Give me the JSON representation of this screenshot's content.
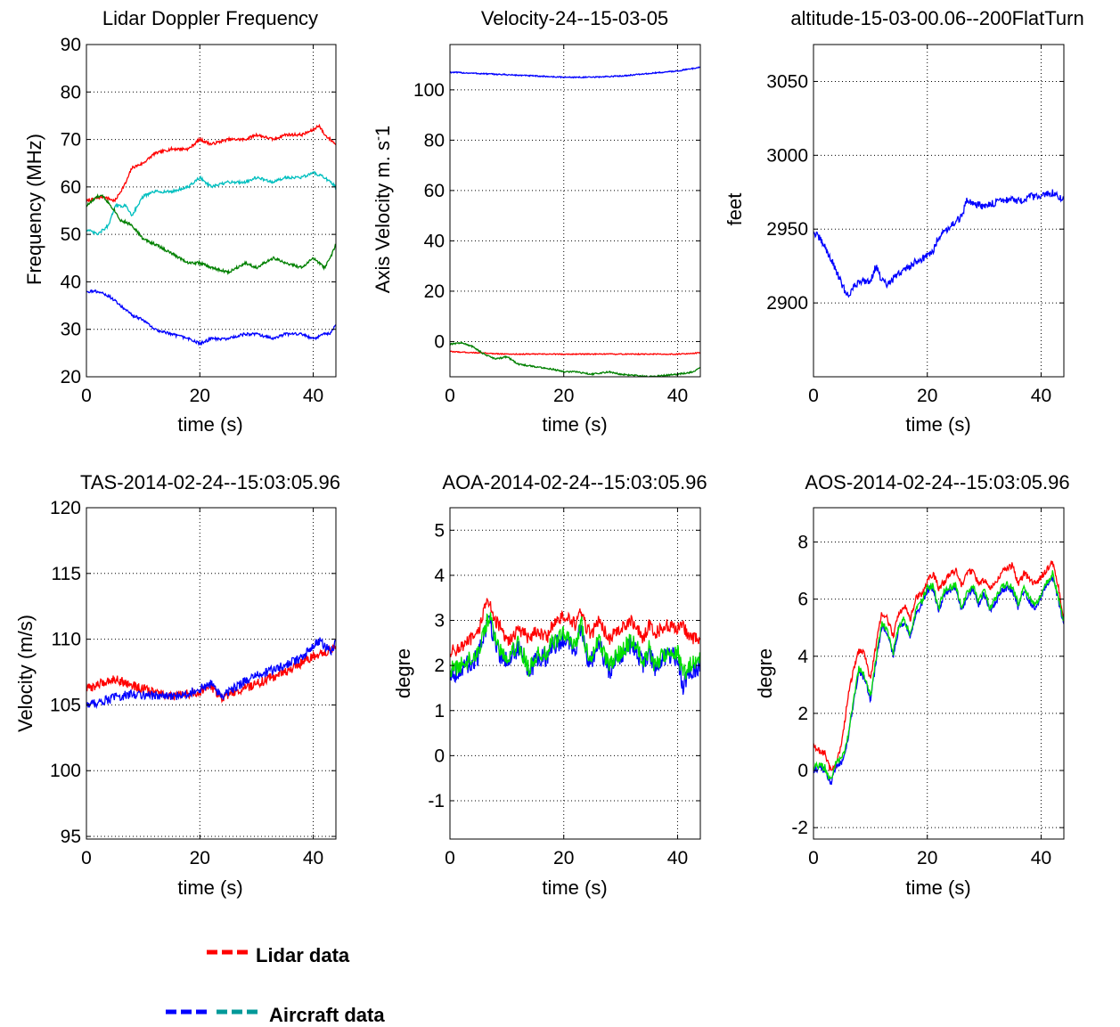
{
  "chart_data": [
    {
      "type": "line",
      "title": "Lidar Doppler Frequency",
      "xlabel": "time (s)",
      "ylabel": "Frequency (MHz)",
      "xlim": [
        0,
        44
      ],
      "ylim": [
        20,
        90
      ],
      "xticks": [
        0,
        20,
        40
      ],
      "yticks": [
        20,
        30,
        40,
        50,
        60,
        70,
        80,
        90
      ],
      "grid": true,
      "series": [
        {
          "color": "#ff0000",
          "noise": 0.3,
          "x": [
            0,
            3,
            5,
            7,
            8,
            10,
            12,
            15,
            18,
            20,
            22,
            25,
            28,
            30,
            33,
            35,
            38,
            40,
            41,
            42,
            43,
            44
          ],
          "values": [
            57,
            58,
            57,
            61,
            64,
            65,
            67,
            68,
            68,
            70,
            69,
            70,
            70,
            71,
            70,
            71,
            71,
            72,
            73,
            71,
            70,
            69
          ]
        },
        {
          "color": "#00bfbf",
          "noise": 0.3,
          "x": [
            0,
            2,
            4,
            5,
            7,
            8,
            10,
            12,
            15,
            18,
            20,
            22,
            25,
            28,
            30,
            33,
            35,
            38,
            40,
            42,
            43,
            44
          ],
          "values": [
            51,
            50,
            52,
            56,
            56,
            54,
            58,
            59,
            59,
            60,
            62,
            60,
            61,
            61,
            62,
            61,
            62,
            62,
            63,
            62,
            61,
            60
          ]
        },
        {
          "color": "#008000",
          "noise": 0.3,
          "x": [
            0,
            2,
            3,
            5,
            6,
            8,
            10,
            12,
            15,
            18,
            20,
            22,
            25,
            28,
            30,
            33,
            35,
            38,
            40,
            42,
            43,
            44
          ],
          "values": [
            56,
            58,
            58,
            55,
            53,
            52,
            49,
            48,
            46,
            44,
            44,
            43,
            42,
            44,
            43,
            45,
            44,
            43,
            45,
            43,
            45,
            48
          ]
        },
        {
          "color": "#0000ff",
          "noise": 0.3,
          "x": [
            0,
            2,
            4,
            6,
            8,
            10,
            12,
            15,
            18,
            20,
            22,
            25,
            28,
            30,
            33,
            35,
            38,
            40,
            42,
            43,
            44
          ],
          "values": [
            38,
            38,
            37,
            35,
            33,
            32,
            30,
            29,
            28,
            27,
            28,
            28,
            29,
            29,
            28,
            29,
            29,
            28,
            29,
            29,
            31
          ]
        }
      ]
    },
    {
      "type": "line",
      "title": "Velocity-24--15-03-05",
      "xlabel": "time (s)",
      "ylabel": "Axis Velocity m. s^-1",
      "xlim": [
        0,
        44
      ],
      "ylim": [
        -14,
        118
      ],
      "xticks": [
        0,
        20,
        40
      ],
      "yticks": [
        0,
        20,
        40,
        60,
        80,
        100
      ],
      "grid": true,
      "series": [
        {
          "color": "#0000ff",
          "noise": 0.25,
          "x": [
            0,
            5,
            10,
            15,
            20,
            25,
            30,
            35,
            40,
            44
          ],
          "values": [
            107,
            106.5,
            106,
            105.5,
            105,
            105,
            105.5,
            106.5,
            107.5,
            109
          ]
        },
        {
          "color": "#ff0000",
          "noise": 0.2,
          "x": [
            0,
            5,
            10,
            15,
            20,
            25,
            30,
            35,
            40,
            44
          ],
          "values": [
            -4,
            -4.5,
            -5,
            -5,
            -5,
            -5,
            -5,
            -5,
            -5,
            -4.5
          ]
        },
        {
          "color": "#008000",
          "noise": 0.3,
          "x": [
            0,
            2,
            4,
            6,
            8,
            10,
            12,
            15,
            18,
            20,
            22,
            25,
            28,
            30,
            35,
            40,
            43,
            44
          ],
          "values": [
            -1,
            -0.5,
            -2,
            -5,
            -7,
            -6,
            -9,
            -10,
            -11,
            -12,
            -12,
            -13,
            -12,
            -13,
            -14,
            -13,
            -12,
            -10
          ]
        }
      ]
    },
    {
      "type": "line",
      "title": "altitude-15-03-00.06--200FlatTurn",
      "xlabel": "time (s)",
      "ylabel": "feet",
      "xlim": [
        0,
        44
      ],
      "ylim": [
        2850,
        3075
      ],
      "xticks": [
        0,
        20,
        40
      ],
      "yticks": [
        2900,
        2950,
        3000,
        3050
      ],
      "grid": true,
      "series": [
        {
          "color": "#0000ff",
          "noise": 2.5,
          "x": [
            0,
            1,
            2,
            3,
            4,
            5,
            6,
            7,
            8,
            10,
            11,
            12,
            13,
            15,
            17,
            18,
            20,
            21,
            22,
            24,
            26,
            27,
            28,
            30,
            32,
            33,
            35,
            37,
            38,
            40,
            42,
            43,
            44
          ],
          "values": [
            2948,
            2944,
            2938,
            2930,
            2922,
            2912,
            2905,
            2910,
            2915,
            2915,
            2925,
            2915,
            2912,
            2920,
            2925,
            2928,
            2932,
            2935,
            2945,
            2952,
            2958,
            2970,
            2968,
            2965,
            2968,
            2970,
            2970,
            2968,
            2972,
            2972,
            2975,
            2972,
            2970
          ]
        }
      ]
    },
    {
      "type": "line",
      "title": "TAS-2014-02-24--15:03:05.96",
      "xlabel": "time (s)",
      "ylabel": "Velocity (m/s)",
      "xlim": [
        0,
        44
      ],
      "ylim": [
        94.8,
        120
      ],
      "xticks": [
        0,
        20,
        40
      ],
      "yticks": [
        95,
        100,
        105,
        110,
        115,
        120
      ],
      "grid": true,
      "series": [
        {
          "color": "#ff0000",
          "noise": 0.35,
          "x": [
            0,
            3,
            5,
            8,
            10,
            15,
            20,
            22,
            24,
            25,
            28,
            30,
            35,
            38,
            40,
            42,
            44
          ],
          "values": [
            106.2,
            106.7,
            107,
            106.5,
            106.2,
            105.6,
            106,
            106.4,
            105.5,
            105.8,
            106.3,
            106.6,
            107.5,
            108.2,
            108.7,
            109,
            109.5
          ]
        },
        {
          "color": "#0000ff",
          "noise": 0.35,
          "x": [
            0,
            3,
            5,
            8,
            10,
            15,
            18,
            20,
            22,
            24,
            25,
            28,
            30,
            35,
            38,
            40,
            41,
            42,
            43,
            44
          ],
          "values": [
            105,
            105.3,
            105.6,
            105.8,
            105.8,
            105.6,
            105.9,
            106.2,
            106.6,
            105.6,
            106,
            106.8,
            107.2,
            108,
            108.6,
            109.4,
            109.9,
            109.5,
            109.1,
            109.7
          ]
        }
      ]
    },
    {
      "type": "line",
      "title": "AOA-2014-02-24--15:03:05.96",
      "xlabel": "time (s)",
      "ylabel": "degre",
      "xlim": [
        0,
        44
      ],
      "ylim": [
        -1.85,
        5.5
      ],
      "xticks": [
        0,
        20,
        40
      ],
      "yticks": [
        -1,
        0,
        1,
        2,
        3,
        4,
        5
      ],
      "grid": true,
      "series": [
        {
          "color": "#ff0000",
          "noise": 0.15,
          "x": [
            0,
            2,
            4,
            5,
            6,
            7,
            8,
            9,
            10,
            12,
            14,
            15,
            17,
            18,
            20,
            22,
            23,
            24,
            25,
            26,
            28,
            30,
            32,
            34,
            35,
            36,
            38,
            40,
            41,
            42,
            44
          ],
          "values": [
            2.3,
            2.4,
            2.6,
            2.7,
            3.3,
            3.4,
            3,
            2.8,
            2.5,
            2.8,
            2.6,
            2.8,
            2.6,
            2.9,
            3.1,
            2.9,
            3.2,
            2.8,
            2.7,
            3,
            2.6,
            2.8,
            3,
            2.6,
            2.9,
            2.7,
            2.9,
            2.8,
            2.9,
            2.6,
            2.6
          ]
        },
        {
          "color": "#0000ff",
          "noise": 0.22,
          "x": [
            0,
            2,
            4,
            5,
            6,
            7,
            8,
            9,
            10,
            12,
            14,
            15,
            17,
            18,
            20,
            22,
            23,
            24,
            25,
            26,
            28,
            30,
            32,
            34,
            35,
            36,
            38,
            40,
            41,
            42,
            44
          ],
          "values": [
            1.8,
            1.9,
            2.1,
            2.2,
            2.7,
            3,
            2.5,
            2.2,
            2.1,
            2.4,
            1.8,
            2.1,
            2.2,
            2.4,
            2.6,
            2.3,
            2.9,
            2.2,
            2.1,
            2.5,
            1.9,
            2.2,
            2.5,
            2,
            2.3,
            1.9,
            2.2,
            2.2,
            1.5,
            1.9,
            2
          ]
        },
        {
          "color": "#00e000",
          "noise": 0.2,
          "x": [
            0,
            2,
            4,
            5,
            6,
            7,
            8,
            9,
            10,
            12,
            14,
            15,
            17,
            18,
            20,
            22,
            23,
            24,
            25,
            26,
            28,
            30,
            32,
            34,
            35,
            36,
            38,
            40,
            41,
            42,
            44
          ],
          "values": [
            1.9,
            2,
            2.2,
            2.3,
            2.8,
            3.1,
            2.6,
            2.3,
            2.2,
            2.5,
            1.9,
            2.2,
            2.3,
            2.5,
            2.7,
            2.4,
            3,
            2.3,
            2.2,
            2.6,
            2,
            2.3,
            2.6,
            2.1,
            2.4,
            2,
            2.3,
            2.3,
            1.8,
            2,
            2.1
          ]
        }
      ]
    },
    {
      "type": "line",
      "title": "AOS-2014-02-24--15:03:05.96",
      "xlabel": "time (s)",
      "ylabel": "degre",
      "xlim": [
        0,
        44
      ],
      "ylim": [
        -2.4,
        9.2
      ],
      "xticks": [
        0,
        20,
        40
      ],
      "yticks": [
        -2,
        0,
        2,
        4,
        6,
        8
      ],
      "grid": true,
      "series": [
        {
          "color": "#ff0000",
          "noise": 0.12,
          "x": [
            0,
            1,
            2,
            3,
            4,
            5,
            6,
            7,
            8,
            9,
            10,
            11,
            12,
            13,
            14,
            15,
            16,
            17,
            18,
            19,
            20,
            21,
            22,
            23,
            24,
            25,
            26,
            27,
            28,
            29,
            30,
            31,
            32,
            33,
            34,
            35,
            36,
            37,
            38,
            39,
            40,
            41,
            42,
            43,
            44
          ],
          "values": [
            0.8,
            0.7,
            0.6,
            0,
            0.2,
            1,
            2.5,
            3.5,
            4.2,
            4.1,
            3.2,
            4.4,
            5.5,
            5.3,
            4.7,
            5.5,
            5.8,
            5.3,
            6,
            6.2,
            6.6,
            6.9,
            6.4,
            6.6,
            6.9,
            7,
            6.5,
            6.9,
            7,
            6.5,
            6.7,
            6.4,
            6.6,
            6.9,
            7.1,
            7.2,
            6.5,
            6.9,
            6.7,
            6.5,
            6.8,
            7,
            7.3,
            6.5,
            5.2
          ]
        },
        {
          "color": "#0000ff",
          "noise": 0.12,
          "x": [
            0,
            1,
            2,
            3,
            4,
            5,
            6,
            7,
            8,
            9,
            10,
            11,
            12,
            13,
            14,
            15,
            16,
            17,
            18,
            19,
            20,
            21,
            22,
            23,
            24,
            25,
            26,
            27,
            28,
            29,
            30,
            31,
            32,
            33,
            34,
            35,
            36,
            37,
            38,
            39,
            40,
            41,
            42,
            43,
            44
          ],
          "values": [
            0,
            0.1,
            0,
            -0.5,
            0.2,
            0.3,
            1,
            2.3,
            3.5,
            3.2,
            2.5,
            3.8,
            5.1,
            4.8,
            4,
            5,
            5.2,
            4.6,
            5.5,
            5.8,
            6.3,
            6.4,
            5.6,
            6.2,
            6.3,
            6.4,
            5.6,
            6.1,
            6.4,
            5.8,
            6.2,
            5.6,
            5.9,
            6.3,
            6.4,
            6.3,
            5.7,
            6.3,
            5.9,
            5.7,
            6.1,
            6.5,
            6.8,
            6,
            5.1
          ]
        },
        {
          "color": "#00e000",
          "noise": 0.12,
          "x": [
            0,
            1,
            2,
            3,
            4,
            5,
            6,
            7,
            8,
            9,
            10,
            11,
            12,
            13,
            14,
            15,
            16,
            17,
            18,
            19,
            20,
            21,
            22,
            23,
            24,
            25,
            26,
            27,
            28,
            29,
            30,
            31,
            32,
            33,
            34,
            35,
            36,
            37,
            38,
            39,
            40,
            41,
            42,
            43,
            44
          ],
          "values": [
            0.1,
            0.2,
            0.1,
            -0.4,
            0.3,
            0.4,
            1.1,
            2.4,
            3.6,
            3.3,
            2.6,
            3.9,
            5.2,
            4.9,
            4.1,
            5.1,
            5.3,
            4.7,
            5.6,
            5.9,
            6.4,
            6.5,
            5.7,
            6.3,
            6.4,
            6.5,
            5.7,
            6.2,
            6.5,
            5.9,
            6.3,
            5.7,
            6,
            6.4,
            6.5,
            6.4,
            5.8,
            6.4,
            6,
            5.8,
            6.2,
            6.6,
            6.9,
            6.1,
            5.2
          ]
        }
      ]
    }
  ],
  "legend": {
    "lidar_label": "Lidar data",
    "aircraft_label": "Aircraft data",
    "lidar_color": "#ff0000",
    "aircraft_colors": [
      "#0000ff",
      "#009999"
    ]
  }
}
